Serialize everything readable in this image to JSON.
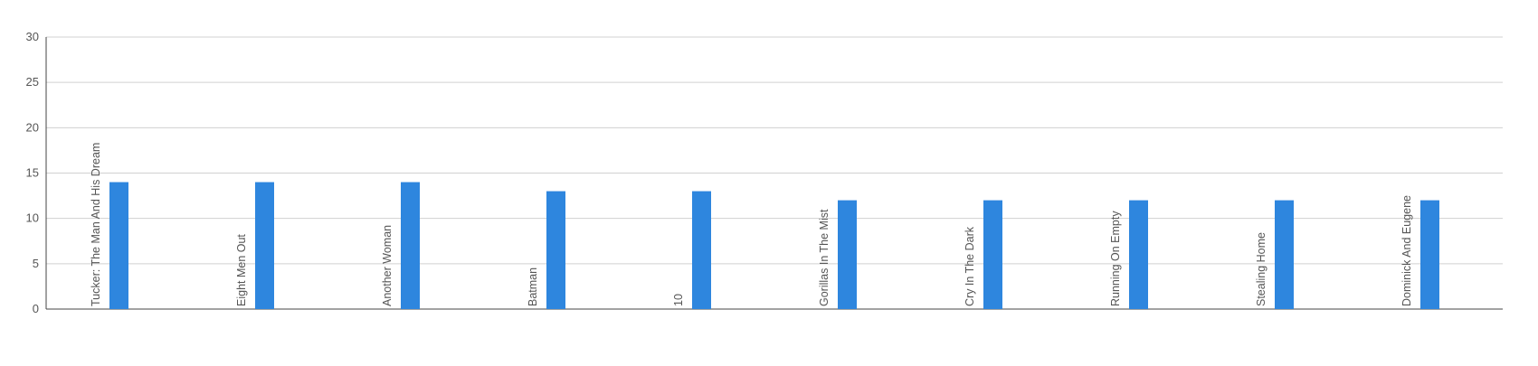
{
  "colors": {
    "bar": "#2e86de",
    "grid": "#d0d0d0",
    "axis": "#444444",
    "text": "#555555"
  },
  "chart_data": {
    "type": "bar",
    "categories": [
      "Tucker: The Man And His Dream",
      "Eight Men Out",
      "Another Woman",
      "Batman",
      "10",
      "Gorillas In The Mist",
      "Cry In The Dark",
      "Running On Empty",
      "Stealing Home",
      "Dominick And Eugene"
    ],
    "values": [
      14,
      14,
      14,
      13,
      13,
      12,
      12,
      12,
      12,
      12
    ],
    "ylim": [
      0,
      30
    ],
    "yticks": [
      0,
      5,
      10,
      15,
      20,
      25,
      30
    ],
    "grid": true,
    "legend": "none"
  }
}
